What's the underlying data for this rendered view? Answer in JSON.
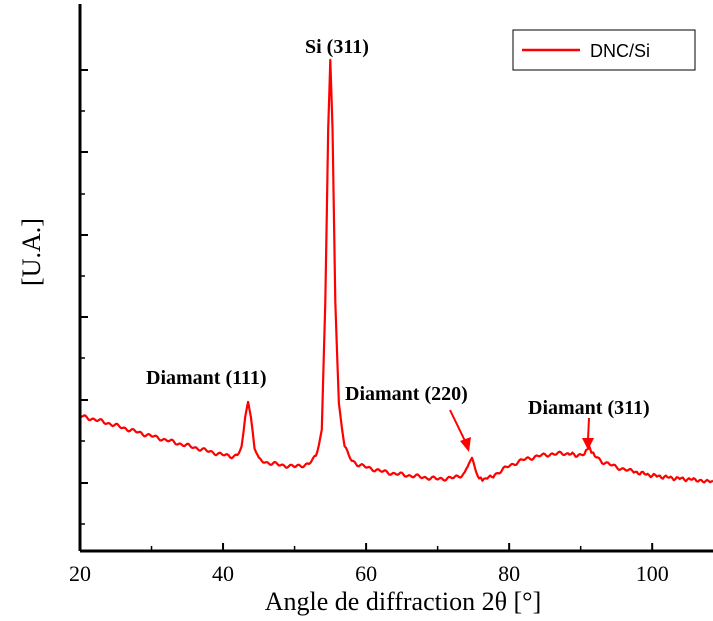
{
  "chart_data": {
    "type": "line",
    "title": "",
    "xlabel": "Angle de diffraction 2θ [°]",
    "ylabel": "[U.A.]",
    "xlim": [
      20,
      108.5
    ],
    "ylim": [
      0,
      1
    ],
    "xticks": [
      20,
      40,
      60,
      80,
      100
    ],
    "xtick_labels": [
      "20",
      "40",
      "60",
      "80",
      "100"
    ],
    "y_tick_labels_shown": false,
    "grid": false,
    "legend": {
      "position": "top-right",
      "entries": [
        "DNC/Si"
      ]
    },
    "series": [
      {
        "name": "DNC/Si",
        "color": "#ff0000",
        "x": [
          20,
          22,
          24,
          26,
          28,
          30,
          32,
          34,
          36,
          38,
          40,
          41,
          42,
          42.6,
          43.1,
          43.5,
          43.9,
          44.4,
          45,
          46,
          48,
          50,
          52,
          53,
          53.8,
          54.3,
          54.7,
          55.0,
          55.3,
          55.7,
          56.2,
          57,
          58,
          59,
          60,
          62,
          64,
          66,
          68,
          70,
          72,
          73,
          73.8,
          74.4,
          74.8,
          75.2,
          75.8,
          76.5,
          78,
          80,
          82,
          84,
          86,
          88,
          89.5,
          90.5,
          91.0,
          91.5,
          92,
          93,
          95,
          97,
          100,
          103,
          106,
          108.5
        ],
        "y": [
          0.192,
          0.184,
          0.175,
          0.165,
          0.155,
          0.146,
          0.137,
          0.128,
          0.12,
          0.111,
          0.103,
          0.1,
          0.102,
          0.12,
          0.19,
          0.22,
          0.19,
          0.12,
          0.092,
          0.086,
          0.08,
          0.076,
          0.082,
          0.1,
          0.16,
          0.45,
          0.85,
          1.0,
          0.85,
          0.45,
          0.22,
          0.12,
          0.09,
          0.08,
          0.075,
          0.066,
          0.06,
          0.056,
          0.052,
          0.048,
          0.05,
          0.054,
          0.062,
          0.085,
          0.092,
          0.075,
          0.05,
          0.046,
          0.058,
          0.078,
          0.092,
          0.1,
          0.105,
          0.106,
          0.102,
          0.104,
          0.12,
          0.112,
          0.1,
          0.088,
          0.075,
          0.066,
          0.056,
          0.05,
          0.046,
          0.044
        ]
      }
    ],
    "annotations": [
      {
        "label": "Si (311)"
      },
      {
        "label": "Diamant (111)"
      },
      {
        "label": "Diamant (220)"
      },
      {
        "label": "Diamant (311)"
      }
    ]
  }
}
